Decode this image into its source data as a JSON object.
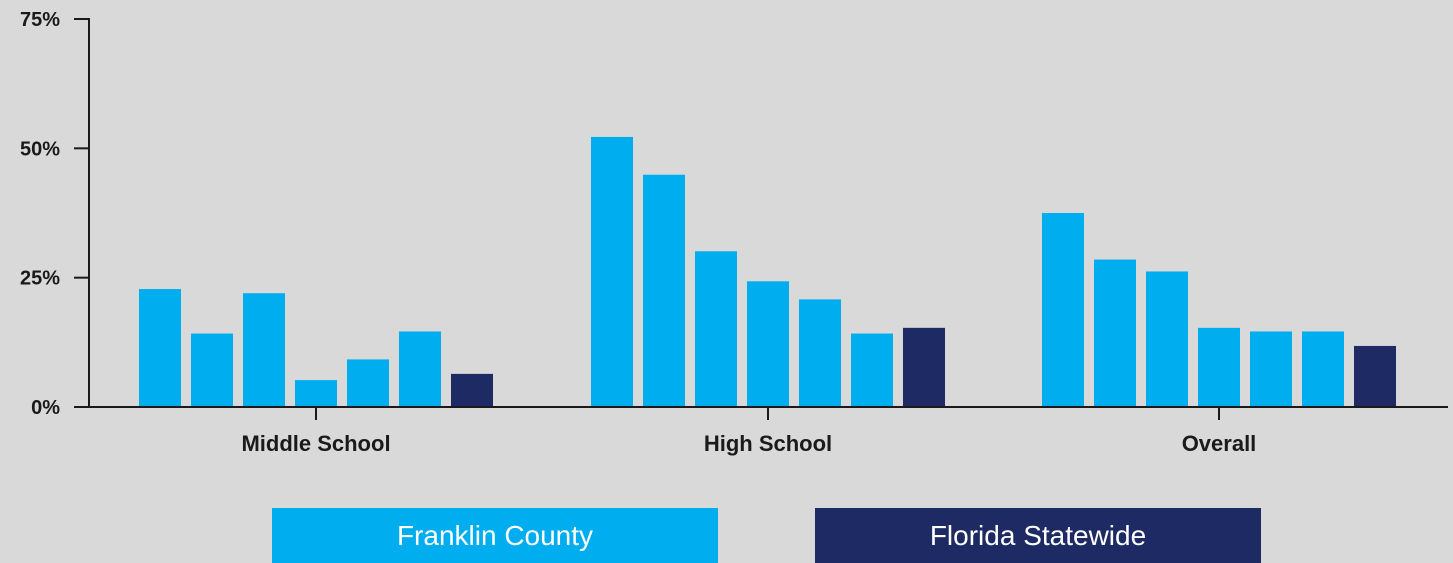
{
  "chart_data": {
    "type": "bar",
    "categories": [
      "Middle School",
      "High School",
      "Overall"
    ],
    "series_values": [
      [
        22.8,
        14.2,
        22.0,
        5.2,
        9.2,
        14.6,
        6.4
      ],
      [
        52.2,
        44.9,
        30.1,
        24.3,
        20.8,
        14.2,
        15.3
      ],
      [
        37.5,
        28.5,
        26.2,
        15.3,
        14.6,
        14.6,
        11.8
      ]
    ],
    "bar_colors": [
      "#00aeef",
      "#00aeef",
      "#00aeef",
      "#00aeef",
      "#00aeef",
      "#00aeef",
      "#1e2a63"
    ],
    "y_ticks": [
      {
        "value": 0,
        "label": "0%"
      },
      {
        "value": 25,
        "label": "25%"
      },
      {
        "value": 50,
        "label": "50%"
      },
      {
        "value": 75,
        "label": "75%"
      }
    ],
    "ylim": [
      0,
      75
    ],
    "legend": [
      {
        "label": "Franklin County",
        "color": "#00aeef"
      },
      {
        "label": "Florida Statewide",
        "color": "#1e2a63"
      }
    ],
    "legend_position": "bottom"
  }
}
